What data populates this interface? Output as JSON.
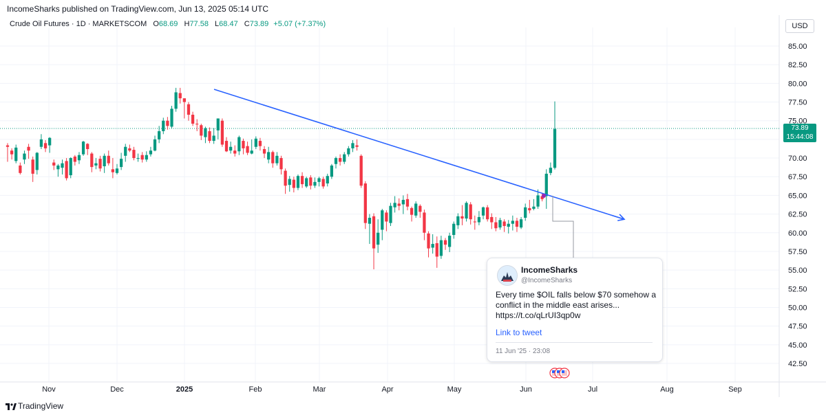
{
  "header": {
    "published": "IncomeSharks published on TradingView.com, Jun 13, 2025 05:14 UTC"
  },
  "symbol": {
    "name": "Crude Oil Futures · 1D · MARKETSCOM",
    "o_label": "O",
    "o": "68.69",
    "h_label": "H",
    "h": "77.58",
    "l_label": "L",
    "l": "68.47",
    "c_label": "C",
    "c": "73.89",
    "change": "+5.07 (+7.37%)"
  },
  "currency": "USD",
  "last_price": {
    "price": "73.89",
    "countdown": "15:44:08"
  },
  "tweet": {
    "name": "IncomeSharks",
    "handle": "@IncomeSharks",
    "text": "Every time $OIL falls below $70 somehow a conflict in the middle east arises... https://t.co/qLrUI3qp0w",
    "link": "Link to tweet",
    "date": "11 Jun '25 · 23:08"
  },
  "footer": {
    "brand": "TradingView"
  },
  "colors": {
    "up": "#089981",
    "down": "#f23645",
    "trendline": "#2962ff",
    "grid": "#f0f3fa"
  },
  "chart_data": {
    "type": "candlestick",
    "y_ticks": [
      "85.00",
      "82.50",
      "80.00",
      "77.50",
      "75.00",
      "72.50",
      "70.00",
      "67.50",
      "65.00",
      "62.50",
      "60.00",
      "57.50",
      "55.00",
      "52.50",
      "50.00",
      "47.50",
      "45.00",
      "42.50"
    ],
    "ylim": [
      41,
      87
    ],
    "x_ticks": [
      "Nov",
      "Dec",
      "2025",
      "Feb",
      "Mar",
      "Apr",
      "May",
      "Jun",
      "Jul",
      "Aug",
      "Sep"
    ],
    "candles": [
      [
        71.7,
        71.5,
        69.5,
        72.0
      ],
      [
        71.0,
        70.5,
        69.8,
        71.3
      ],
      [
        69.6,
        71.4,
        69.3,
        71.8
      ],
      [
        69.0,
        68.0,
        67.8,
        69.4
      ],
      [
        69.8,
        70.6,
        69.2,
        71.0
      ],
      [
        71.5,
        71.0,
        69.9,
        71.9
      ],
      [
        69.8,
        67.9,
        66.8,
        70.2
      ],
      [
        68.4,
        70.7,
        67.8,
        70.8
      ],
      [
        71.5,
        72.5,
        71.2,
        73.2
      ],
      [
        72.0,
        71.3,
        70.8,
        72.4
      ],
      [
        71.7,
        72.7,
        70.7,
        72.8
      ],
      [
        69.4,
        69.0,
        68.4,
        69.8
      ],
      [
        68.5,
        69.0,
        67.5,
        69.2
      ],
      [
        68.7,
        69.3,
        67.8,
        69.8
      ],
      [
        69.6,
        67.3,
        67.0,
        70.0
      ],
      [
        67.7,
        70.0,
        67.3,
        70.1
      ],
      [
        70.2,
        69.5,
        69.0,
        70.4
      ],
      [
        69.7,
        70.4,
        69.2,
        70.8
      ],
      [
        70.5,
        72.2,
        70.3,
        72.3
      ],
      [
        71.9,
        71.2,
        70.4,
        72.0
      ],
      [
        70.6,
        68.8,
        68.1,
        70.8
      ],
      [
        69.0,
        69.3,
        68.5,
        70.0
      ],
      [
        69.9,
        68.6,
        68.2,
        70.3
      ],
      [
        68.9,
        70.3,
        68.0,
        70.6
      ],
      [
        70.3,
        69.3,
        69.0,
        71.0
      ],
      [
        68.5,
        68.1,
        67.3,
        70.0
      ],
      [
        68.0,
        68.6,
        67.8,
        69.2
      ],
      [
        68.8,
        69.9,
        68.4,
        70.7
      ],
      [
        70.3,
        71.5,
        69.5,
        71.9
      ],
      [
        71.3,
        71.0,
        70.8,
        71.8
      ],
      [
        71.1,
        70.0,
        69.7,
        71.5
      ],
      [
        69.9,
        70.0,
        69.5,
        70.6
      ],
      [
        70.4,
        69.8,
        69.4,
        70.8
      ],
      [
        69.8,
        70.4,
        69.5,
        70.9
      ],
      [
        70.5,
        71.0,
        70.2,
        71.5
      ],
      [
        71.0,
        72.5,
        70.9,
        73.0
      ],
      [
        72.5,
        73.6,
        72.0,
        74.3
      ],
      [
        73.6,
        75.0,
        73.2,
        75.4
      ],
      [
        75.0,
        74.3,
        73.8,
        75.5
      ],
      [
        74.2,
        76.6,
        74.0,
        77.0
      ],
      [
        76.6,
        78.8,
        76.2,
        79.4
      ],
      [
        78.7,
        78.0,
        77.3,
        79.4
      ],
      [
        78.0,
        77.5,
        75.3,
        78.0
      ],
      [
        77.2,
        75.8,
        75.0,
        77.5
      ],
      [
        75.8,
        74.6,
        74.3,
        76.2
      ],
      [
        74.6,
        74.5,
        73.6,
        75.2
      ],
      [
        74.4,
        73.0,
        72.4,
        74.6
      ],
      [
        72.8,
        74.0,
        72.0,
        74.2
      ],
      [
        73.6,
        72.3,
        72.0,
        74.1
      ],
      [
        72.3,
        73.0,
        71.9,
        74.0
      ],
      [
        73.7,
        75.3,
        72.5,
        75.3
      ],
      [
        75.0,
        71.8,
        71.5,
        75.3
      ],
      [
        72.3,
        70.9,
        70.8,
        72.8
      ],
      [
        71.0,
        71.5,
        70.6,
        72.2
      ],
      [
        71.0,
        70.6,
        70.2,
        71.7
      ],
      [
        70.9,
        72.8,
        70.4,
        73.0
      ],
      [
        72.3,
        71.3,
        70.5,
        72.6
      ],
      [
        71.6,
        70.7,
        70.4,
        72.2
      ],
      [
        70.6,
        71.0,
        70.5,
        72.5
      ],
      [
        71.5,
        72.6,
        71.2,
        72.9
      ],
      [
        72.3,
        71.6,
        71.0,
        72.7
      ],
      [
        71.2,
        70.6,
        70.0,
        71.6
      ],
      [
        69.8,
        70.8,
        69.3,
        71.5
      ],
      [
        70.8,
        69.3,
        68.7,
        71.0
      ],
      [
        69.3,
        70.3,
        69.0,
        70.8
      ],
      [
        70.0,
        68.5,
        67.8,
        70.3
      ],
      [
        68.3,
        66.3,
        65.2,
        68.6
      ],
      [
        66.4,
        67.2,
        65.5,
        67.6
      ],
      [
        67.1,
        66.0,
        65.4,
        67.5
      ],
      [
        66.0,
        67.6,
        65.7,
        67.8
      ],
      [
        67.6,
        66.5,
        66.0,
        68.1
      ],
      [
        66.2,
        67.3,
        66.0,
        67.5
      ],
      [
        67.4,
        66.3,
        65.8,
        67.7
      ],
      [
        66.3,
        66.8,
        66.0,
        67.4
      ],
      [
        66.8,
        67.3,
        66.2,
        67.5
      ],
      [
        67.2,
        66.2,
        65.9,
        67.5
      ],
      [
        66.6,
        67.6,
        66.2,
        67.9
      ],
      [
        67.5,
        69.0,
        67.2,
        69.2
      ],
      [
        69.2,
        70.0,
        68.6,
        70.2
      ],
      [
        70.0,
        69.5,
        69.0,
        70.5
      ],
      [
        69.5,
        70.5,
        69.2,
        70.8
      ],
      [
        70.5,
        71.3,
        70.2,
        71.6
      ],
      [
        71.3,
        72.0,
        70.8,
        72.4
      ],
      [
        71.7,
        71.5,
        71.0,
        72.5
      ],
      [
        70.3,
        66.3,
        66.0,
        70.5
      ],
      [
        66.6,
        61.3,
        60.5,
        66.9
      ],
      [
        61.2,
        62.0,
        58.5,
        62.5
      ],
      [
        62.2,
        57.9,
        55.1,
        62.6
      ],
      [
        58.4,
        60.0,
        57.3,
        61.8
      ],
      [
        60.4,
        63.0,
        59.0,
        63.2
      ],
      [
        62.7,
        61.5,
        60.2,
        63.0
      ],
      [
        61.3,
        63.6,
        60.9,
        64.0
      ],
      [
        63.4,
        64.0,
        62.7,
        64.9
      ],
      [
        63.9,
        63.6,
        63.0,
        64.6
      ],
      [
        63.8,
        64.4,
        62.5,
        65.0
      ],
      [
        64.5,
        63.5,
        63.0,
        65.2
      ],
      [
        63.3,
        62.4,
        61.5,
        63.5
      ],
      [
        62.3,
        63.9,
        62.0,
        64.2
      ],
      [
        63.6,
        62.8,
        62.0,
        63.8
      ],
      [
        62.7,
        60.0,
        59.0,
        63.1
      ],
      [
        59.9,
        57.9,
        56.7,
        60.2
      ],
      [
        58.0,
        58.5,
        57.2,
        59.8
      ],
      [
        58.6,
        56.8,
        55.3,
        59.5
      ],
      [
        56.9,
        59.0,
        56.5,
        59.6
      ],
      [
        59.0,
        58.4,
        57.7,
        59.3
      ],
      [
        58.1,
        59.6,
        57.4,
        60.0
      ],
      [
        59.7,
        61.2,
        59.2,
        61.5
      ],
      [
        61.0,
        62.2,
        60.5,
        62.6
      ],
      [
        62.2,
        61.9,
        61.0,
        63.7
      ],
      [
        61.9,
        64.0,
        61.5,
        64.2
      ],
      [
        63.8,
        61.8,
        61.1,
        64.1
      ],
      [
        61.5,
        61.4,
        60.4,
        62.3
      ],
      [
        61.4,
        62.1,
        61.0,
        62.9
      ],
      [
        62.3,
        63.4,
        61.8,
        63.5
      ],
      [
        63.4,
        61.8,
        61.5,
        63.7
      ],
      [
        62.1,
        61.4,
        60.5,
        62.6
      ],
      [
        61.4,
        60.6,
        60.2,
        62.1
      ],
      [
        60.7,
        61.7,
        60.4,
        62.0
      ],
      [
        61.5,
        60.9,
        60.1,
        61.8
      ],
      [
        60.8,
        61.2,
        59.9,
        61.7
      ],
      [
        61.2,
        61.6,
        60.3,
        62.3
      ],
      [
        61.6,
        60.8,
        60.1,
        62.0
      ],
      [
        60.7,
        61.8,
        60.5,
        62.1
      ],
      [
        62.0,
        63.4,
        61.6,
        63.9
      ],
      [
        63.3,
        63.0,
        62.6,
        64.4
      ],
      [
        63.2,
        63.5,
        63.0,
        64.5
      ],
      [
        63.5,
        65.0,
        63.2,
        65.8
      ],
      [
        64.9,
        64.5,
        64.2,
        65.3
      ],
      [
        64.9,
        67.9,
        63.2,
        68.5
      ],
      [
        68.0,
        68.7,
        67.7,
        69.4
      ],
      [
        68.69,
        73.89,
        68.47,
        77.58
      ]
    ],
    "trendline": {
      "start": [
        "2025-01-15",
        79.2
      ],
      "end": [
        "2025-07-14",
        61.8
      ]
    }
  }
}
